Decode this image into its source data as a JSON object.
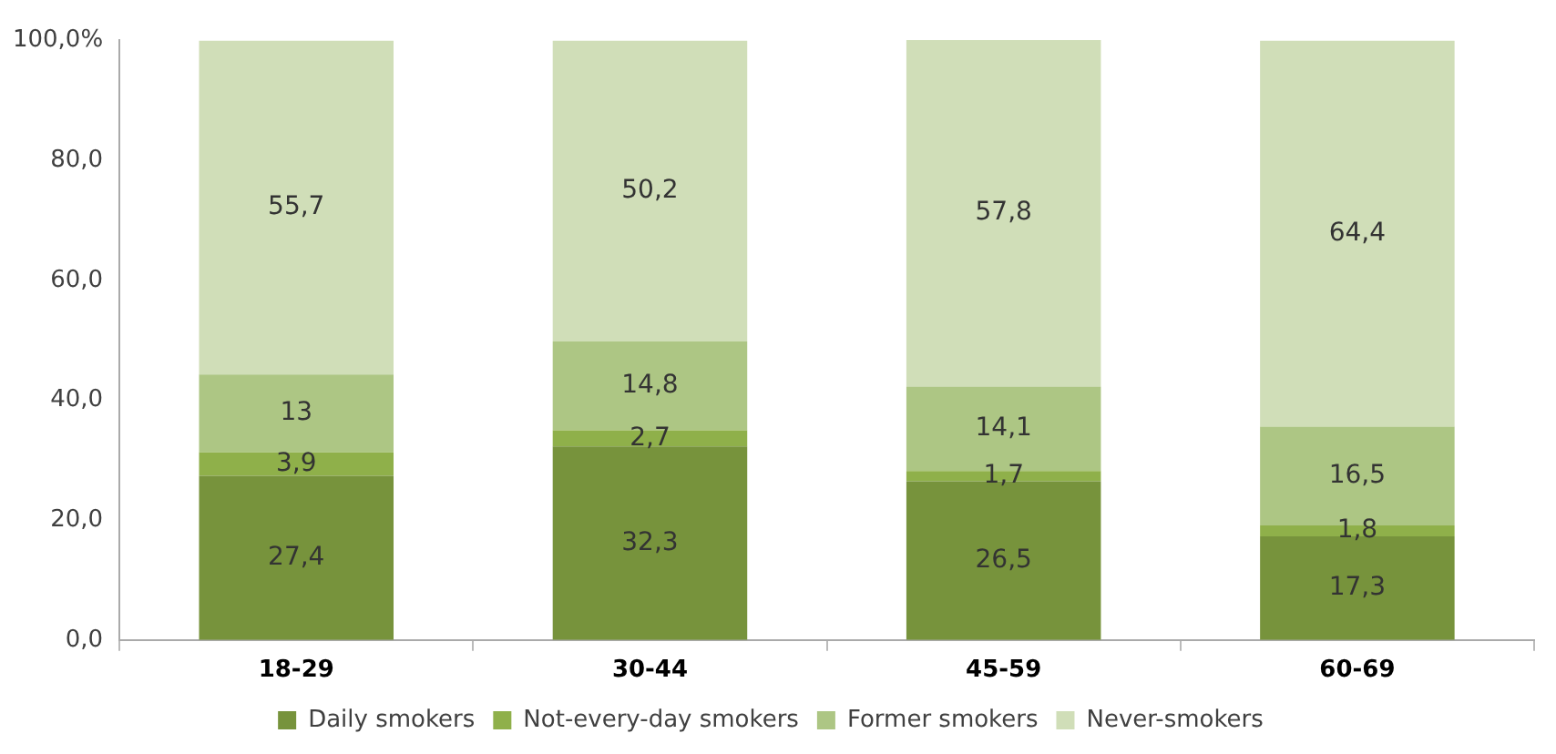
{
  "chart_data": {
    "type": "bar",
    "stacked": true,
    "categories": [
      "18-29",
      "30-44",
      "45-59",
      "60-69"
    ],
    "series": [
      {
        "name": "Daily smokers",
        "color": "#77933c",
        "values": [
          27.4,
          32.3,
          26.5,
          17.3
        ],
        "value_labels": [
          "27,4",
          "32,3",
          "26,5",
          "17,3"
        ]
      },
      {
        "name": "Not-every-day smokers",
        "color": "#8fb04a",
        "values": [
          3.9,
          2.7,
          1.7,
          1.8
        ],
        "value_labels": [
          "3,9",
          "2,7",
          "1,7",
          "1,8"
        ]
      },
      {
        "name": "Former smokers",
        "color": "#adc684",
        "values": [
          13,
          14.8,
          14.1,
          16.5
        ],
        "value_labels": [
          "13",
          "14,8",
          "14,1",
          "16,5"
        ]
      },
      {
        "name": "Never-smokers",
        "color": "#d0deb8",
        "values": [
          55.7,
          50.2,
          57.8,
          64.4
        ],
        "value_labels": [
          "55,7",
          "50,2",
          "57,8",
          "64,4"
        ]
      }
    ],
    "ylim": [
      0,
      100.1
    ],
    "yticks": [
      {
        "value": 0,
        "label": "0,0"
      },
      {
        "value": 20,
        "label": "20,0"
      },
      {
        "value": 40,
        "label": "40,0"
      },
      {
        "value": 60,
        "label": "60,0"
      },
      {
        "value": 80,
        "label": "80,0"
      },
      {
        "value": 100,
        "label": "100,0%"
      }
    ],
    "grid": false,
    "legend": "bottom"
  }
}
